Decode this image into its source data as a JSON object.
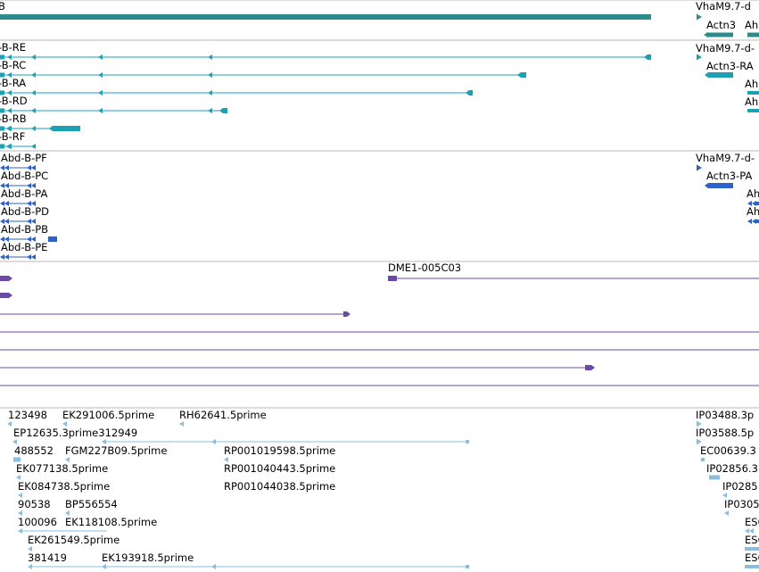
{
  "colors": {
    "track_gene": "#2c8c8c",
    "track_flybase_transcripts": "#1ea0b4",
    "track_refseq": "#2f62c8",
    "track_cdna": "#6a4aa6",
    "track_est": "#8abfe0",
    "separator": "#b8b8b8"
  },
  "icons": {
    "feature_start": "rect-terminal",
    "strand_arrow": "leftward-triangle",
    "strand_arrow_forward": "rightward-triangle"
  },
  "tracks": [
    {
      "name": "gene",
      "features": [
        {
          "label": "B",
          "row": 0
        },
        {
          "label": "VhaM9.7-d",
          "row": 0
        },
        {
          "label": "Actn3",
          "row": 1
        },
        {
          "label": "Ah",
          "row": 1
        }
      ]
    },
    {
      "name": "flybase-transcripts",
      "features": [
        {
          "label": "-B-RE"
        },
        {
          "label": "-B-RC"
        },
        {
          "label": "-B-RA"
        },
        {
          "label": "-B-RD"
        },
        {
          "label": "-B-RB"
        },
        {
          "label": "-B-RF"
        },
        {
          "label": "VhaM9.7-d-"
        },
        {
          "label": "Actn3-RA"
        },
        {
          "label": "Ah"
        },
        {
          "label": "Ah"
        }
      ]
    },
    {
      "name": "refseq",
      "features": [
        {
          "label": "Abd-B-PF"
        },
        {
          "label": "Abd-B-PC"
        },
        {
          "label": "Abd-B-PA"
        },
        {
          "label": "Abd-B-PD"
        },
        {
          "label": "Abd-B-PB"
        },
        {
          "label": "Abd-B-PE"
        },
        {
          "label": "VhaM9.7-d-"
        },
        {
          "label": "Actn3-PA"
        },
        {
          "label": "Ah"
        },
        {
          "label": "Ah"
        }
      ]
    },
    {
      "name": "cdna",
      "features": [
        {
          "label": "DME1-005C03"
        }
      ]
    },
    {
      "name": "est",
      "features": [
        {
          "label": "123498"
        },
        {
          "label": "EK291006.5prime"
        },
        {
          "label": "RH62641.5prime"
        },
        {
          "label": "IP03488.3p"
        },
        {
          "label": "EP12635.3prime312949"
        },
        {
          "label": "IP03588.5p"
        },
        {
          "label": "488552"
        },
        {
          "label": "FGM227B09.5prime"
        },
        {
          "label": "RP001019598.5prime"
        },
        {
          "label": "EC00639.3"
        },
        {
          "label": "EK077138.5prime"
        },
        {
          "label": "RP001040443.5prime"
        },
        {
          "label": "IP02856.3"
        },
        {
          "label": "EK084738.5prime"
        },
        {
          "label": "RP001044038.5prime"
        },
        {
          "label": "IP0285"
        },
        {
          "label": "90538"
        },
        {
          "label": "BP556554"
        },
        {
          "label": "IP0305"
        },
        {
          "label": "100096"
        },
        {
          "label": "EK118108.5prime"
        },
        {
          "label": "ESC"
        },
        {
          "label": "EK261549.5prime"
        },
        {
          "label": "ESC"
        },
        {
          "label": "381419"
        },
        {
          "label": "EK193918.5prime"
        },
        {
          "label": "ESC"
        }
      ]
    }
  ]
}
